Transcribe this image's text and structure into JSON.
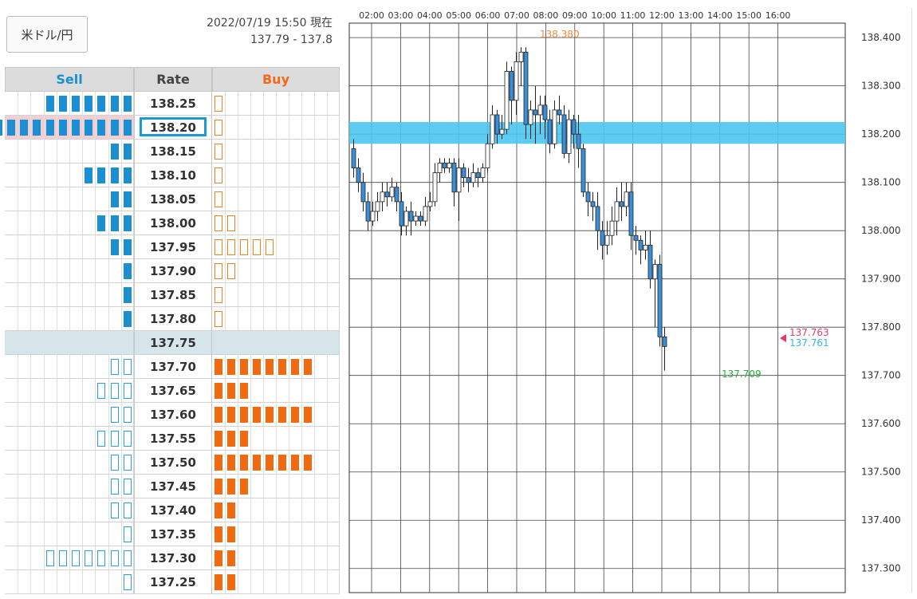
{
  "header": {
    "pair_button": "米ドル/円",
    "timestamp": "2022/07/19 15:50 現在",
    "bid_ask": "137.79 - 137.8"
  },
  "book": {
    "sell_label": "Sell",
    "rate_label": "Rate",
    "buy_label": "Buy",
    "current_rate": "137.75",
    "selected_rate": "138.20",
    "rows": [
      {
        "rate": "138.25",
        "sell": 7,
        "sell_style": "filled",
        "buy": 1,
        "buy_style": "outline"
      },
      {
        "rate": "138.20",
        "sell": 11,
        "sell_style": "filled",
        "buy": 1,
        "buy_style": "outline"
      },
      {
        "rate": "138.15",
        "sell": 2,
        "sell_style": "filled",
        "buy": 1,
        "buy_style": "outline"
      },
      {
        "rate": "138.10",
        "sell": 4,
        "sell_style": "filled",
        "buy": 1,
        "buy_style": "outline"
      },
      {
        "rate": "138.05",
        "sell": 2,
        "sell_style": "filled",
        "buy": 1,
        "buy_style": "outline"
      },
      {
        "rate": "138.00",
        "sell": 3,
        "sell_style": "filled",
        "buy": 2,
        "buy_style": "outline"
      },
      {
        "rate": "137.95",
        "sell": 2,
        "sell_style": "filled",
        "buy": 5,
        "buy_style": "outline"
      },
      {
        "rate": "137.90",
        "sell": 1,
        "sell_style": "filled",
        "buy": 2,
        "buy_style": "outline"
      },
      {
        "rate": "137.85",
        "sell": 1,
        "sell_style": "filled",
        "buy": 1,
        "buy_style": "outline"
      },
      {
        "rate": "137.80",
        "sell": 1,
        "sell_style": "filled",
        "buy": 1,
        "buy_style": "outline"
      },
      {
        "rate": "137.75",
        "sell": 0,
        "sell_style": "none",
        "buy": 0,
        "buy_style": "none"
      },
      {
        "rate": "137.70",
        "sell": 2,
        "sell_style": "outline",
        "buy": 8,
        "buy_style": "filled"
      },
      {
        "rate": "137.65",
        "sell": 3,
        "sell_style": "outline",
        "buy": 3,
        "buy_style": "filled"
      },
      {
        "rate": "137.60",
        "sell": 2,
        "sell_style": "outline",
        "buy": 8,
        "buy_style": "filled"
      },
      {
        "rate": "137.55",
        "sell": 3,
        "sell_style": "outline",
        "buy": 3,
        "buy_style": "filled"
      },
      {
        "rate": "137.50",
        "sell": 2,
        "sell_style": "outline",
        "buy": 8,
        "buy_style": "filled"
      },
      {
        "rate": "137.45",
        "sell": 2,
        "sell_style": "outline",
        "buy": 3,
        "buy_style": "filled"
      },
      {
        "rate": "137.40",
        "sell": 2,
        "sell_style": "outline",
        "buy": 2,
        "buy_style": "filled"
      },
      {
        "rate": "137.35",
        "sell": 1,
        "sell_style": "outline",
        "buy": 2,
        "buy_style": "filled"
      },
      {
        "rate": "137.30",
        "sell": 7,
        "sell_style": "outline",
        "buy": 2,
        "buy_style": "filled"
      },
      {
        "rate": "137.25",
        "sell": 1,
        "sell_style": "outline",
        "buy": 2,
        "buy_style": "filled"
      }
    ]
  },
  "colors": {
    "sell": "#1b8fd0",
    "buy": "#f26a10",
    "candle_up": "#ffffff",
    "candle_down": "#3a8fd8",
    "band": "#4cc6f0",
    "high_label": "#f58a3a",
    "low_label": "#22b33a",
    "ask_label": "#e83a6a",
    "bid_label": "#33b8e8"
  },
  "chart_data": {
    "type": "candlestick",
    "x_labels": [
      "02:00",
      "03:00",
      "04:00",
      "05:00",
      "06:00",
      "07:00",
      "08:00",
      "09:00",
      "10:00",
      "11:00",
      "12:00",
      "13:00",
      "14:00",
      "15:00",
      "16:00"
    ],
    "y_ticks": [
      "138.400",
      "138.300",
      "138.200",
      "138.100",
      "138.000",
      "137.900",
      "137.800",
      "137.700",
      "137.600",
      "137.500",
      "137.400",
      "137.300"
    ],
    "ylim": [
      137.25,
      138.43
    ],
    "highlight_band": {
      "from": 138.18,
      "to": 138.225
    },
    "high_label": "138.380",
    "low_label": "137.709",
    "ask_label": "137.763",
    "bid_label": "137.761",
    "candles": [
      [
        138.17,
        138.13,
        138.19,
        138.11
      ],
      [
        138.13,
        138.1,
        138.15,
        138.08
      ],
      [
        138.1,
        138.06,
        138.12,
        138.04
      ],
      [
        138.06,
        138.02,
        138.08,
        138.0
      ],
      [
        138.02,
        138.04,
        138.06,
        138.01
      ],
      [
        138.04,
        138.06,
        138.08,
        138.02
      ],
      [
        138.06,
        138.08,
        138.1,
        138.04
      ],
      [
        138.08,
        138.07,
        138.1,
        138.05
      ],
      [
        138.07,
        138.09,
        138.11,
        138.06
      ],
      [
        138.09,
        138.06,
        138.1,
        138.04
      ],
      [
        138.06,
        138.01,
        138.08,
        137.99
      ],
      [
        138.01,
        138.04,
        138.05,
        137.99
      ],
      [
        138.04,
        138.02,
        138.06,
        137.99
      ],
      [
        138.02,
        138.03,
        138.04,
        138.01
      ],
      [
        138.03,
        138.02,
        138.04,
        138.01
      ],
      [
        138.02,
        138.05,
        138.07,
        138.01
      ],
      [
        138.05,
        138.06,
        138.08,
        138.04
      ],
      [
        138.06,
        138.12,
        138.14,
        138.05
      ],
      [
        138.12,
        138.14,
        138.15,
        138.1
      ],
      [
        138.14,
        138.13,
        138.15,
        138.12
      ],
      [
        138.13,
        138.14,
        138.15,
        138.12
      ],
      [
        138.14,
        138.08,
        138.15,
        138.05
      ],
      [
        138.08,
        138.13,
        138.15,
        138.02
      ],
      [
        138.13,
        138.11,
        138.14,
        138.09
      ],
      [
        138.11,
        138.1,
        138.13,
        138.08
      ],
      [
        138.1,
        138.12,
        138.14,
        138.09
      ],
      [
        138.12,
        138.11,
        138.13,
        138.09
      ],
      [
        138.11,
        138.13,
        138.14,
        138.1
      ],
      [
        138.13,
        138.18,
        138.2,
        138.12
      ],
      [
        138.18,
        138.24,
        138.26,
        138.17
      ],
      [
        138.24,
        138.2,
        138.25,
        138.18
      ],
      [
        138.2,
        138.21,
        138.24,
        138.19
      ],
      [
        138.21,
        138.33,
        138.35,
        138.2
      ],
      [
        138.33,
        138.27,
        138.34,
        138.22
      ],
      [
        138.27,
        138.35,
        138.37,
        138.24
      ],
      [
        138.35,
        138.37,
        138.38,
        138.3
      ],
      [
        138.37,
        138.22,
        138.38,
        138.19
      ],
      [
        138.22,
        138.25,
        138.27,
        138.19
      ],
      [
        138.25,
        138.24,
        138.3,
        138.18
      ],
      [
        138.24,
        138.26,
        138.28,
        138.2
      ],
      [
        138.26,
        138.23,
        138.28,
        138.19
      ],
      [
        138.23,
        138.18,
        138.25,
        138.16
      ],
      [
        138.18,
        138.25,
        138.27,
        138.17
      ],
      [
        138.25,
        138.24,
        138.28,
        138.22
      ],
      [
        138.24,
        138.16,
        138.26,
        138.15
      ],
      [
        138.16,
        138.23,
        138.25,
        138.14
      ],
      [
        138.23,
        138.2,
        138.24,
        138.17
      ],
      [
        138.2,
        138.17,
        138.24,
        138.13
      ],
      [
        138.17,
        138.08,
        138.18,
        138.07
      ],
      [
        138.08,
        138.06,
        138.1,
        138.03
      ],
      [
        138.06,
        138.05,
        138.08,
        138.02
      ],
      [
        138.05,
        138.0,
        138.08,
        137.96
      ],
      [
        138.0,
        137.97,
        138.02,
        137.94
      ],
      [
        137.97,
        137.99,
        138.02,
        137.95
      ],
      [
        137.99,
        138.02,
        138.05,
        137.97
      ],
      [
        138.02,
        138.06,
        138.09,
        137.99
      ],
      [
        138.06,
        138.05,
        138.1,
        138.02
      ],
      [
        138.05,
        138.08,
        138.1,
        138.03
      ],
      [
        138.08,
        137.99,
        138.1,
        137.96
      ],
      [
        137.99,
        137.98,
        138.01,
        137.95
      ],
      [
        137.98,
        137.96,
        137.99,
        137.93
      ],
      [
        137.96,
        137.97,
        138.0,
        137.94
      ],
      [
        137.97,
        137.9,
        138.0,
        137.88
      ],
      [
        137.9,
        137.93,
        137.94,
        137.8
      ],
      [
        137.93,
        137.78,
        137.95,
        137.76
      ],
      [
        137.78,
        137.76,
        137.8,
        137.71
      ]
    ]
  }
}
